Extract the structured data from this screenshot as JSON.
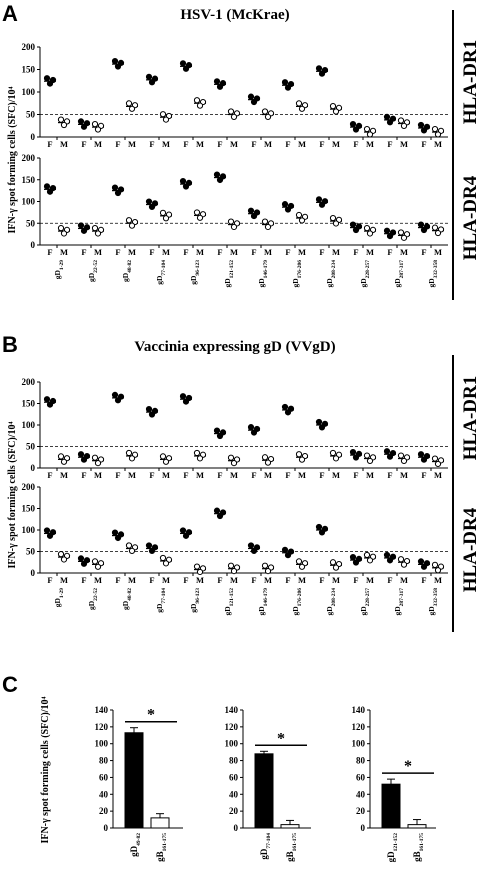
{
  "figure": {
    "panelA": {
      "letter": "A",
      "title": "HSV-1 (McKrae)",
      "side_top": "HLA-DR1",
      "side_bottom": "HLA-DR4",
      "ylabel": "IFN-γ spot forming cells (SFC)/10⁴"
    },
    "panelB": {
      "letter": "B",
      "title": "Vaccinia expressing gD (VVgD)",
      "side_top": "HLA-DR1",
      "side_bottom": "HLA-DR4",
      "ylabel": "IFN-γ spot forming  cells (SFC)/10⁴"
    },
    "panelC": {
      "letter": "C",
      "ylabel": "IFN-γ spot forming cells (SFC)/10⁴"
    }
  },
  "chart_data": [
    {
      "type": "scatter",
      "panel": "A-top",
      "categories": [
        "gD1-29",
        "gD22-52",
        "gD48-82",
        "gD77-104",
        "gD96-123",
        "gD121-152",
        "gD146-179",
        "gD176-206",
        "gD208-234",
        "gD228-257",
        "gD287-317",
        "gD332-358"
      ],
      "sub_labels": [
        "F",
        "M"
      ],
      "yticks": [
        0,
        50,
        100,
        150,
        200
      ],
      "ylim": [
        0,
        200
      ],
      "reference_line": 50,
      "series": [
        {
          "marker": "filled",
          "values": [
            124,
            28,
            162,
            127,
            157,
            117,
            83,
            115,
            146,
            22,
            38,
            20
          ]
        },
        {
          "marker": "open",
          "values": [
            32,
            22,
            68,
            44,
            75,
            50,
            50,
            68,
            62,
            11,
            30,
            11
          ]
        }
      ]
    },
    {
      "type": "scatter",
      "panel": "A-bottom",
      "categories": [
        "gD1-29",
        "gD22-52",
        "gD48-82",
        "gD77-104",
        "gD96-123",
        "gD121-152",
        "gD146-179",
        "gD176-206",
        "gD208-234",
        "gD228-257",
        "gD287-317",
        "gD332-358"
      ],
      "category_labels": [
        {
          "main": "gD",
          "sub": "1-29"
        },
        {
          "main": "gD",
          "sub": "22-52"
        },
        {
          "main": "gD",
          "sub": "48-82"
        },
        {
          "main": "gD",
          "sub": "77-104"
        },
        {
          "main": "gD",
          "sub": "96-123"
        },
        {
          "main": "gD",
          "sub": "121-152"
        },
        {
          "main": "gD",
          "sub": "146-179"
        },
        {
          "main": "gD",
          "sub": "176-206"
        },
        {
          "main": "gD",
          "sub": "208-234"
        },
        {
          "main": "gD",
          "sub": "228-257"
        },
        {
          "main": "gD",
          "sub": "287-317"
        },
        {
          "main": "gD",
          "sub": "332-358"
        }
      ],
      "sub_labels": [
        "F",
        "M"
      ],
      "yticks": [
        0,
        50,
        100,
        150,
        200
      ],
      "ylim": [
        0,
        200
      ],
      "reference_line": 50,
      "series": [
        {
          "marker": "filled",
          "values": [
            128,
            38,
            125,
            93,
            140,
            155,
            72,
            87,
            98,
            40,
            26,
            40
          ]
        },
        {
          "marker": "open",
          "values": [
            32,
            32,
            50,
            67,
            68,
            47,
            47,
            62,
            55,
            32,
            22,
            33
          ]
        }
      ]
    },
    {
      "type": "scatter",
      "panel": "B-top",
      "categories": [
        "gD1-29",
        "gD22-52",
        "gD48-82",
        "gD77-104",
        "gD96-123",
        "gD121-152",
        "gD146-179",
        "gD176-206",
        "gD208-234",
        "gD228-257",
        "gD287-317",
        "gD332-358"
      ],
      "sub_labels": [
        "F",
        "M"
      ],
      "yticks": [
        0,
        50,
        100,
        150,
        200
      ],
      "ylim": [
        0,
        200
      ],
      "reference_line": 50,
      "series": [
        {
          "marker": "filled",
          "values": [
            153,
            25,
            163,
            130,
            160,
            80,
            88,
            135,
            100,
            30,
            32,
            25
          ]
        },
        {
          "marker": "open",
          "values": [
            20,
            17,
            28,
            20,
            28,
            17,
            18,
            25,
            28,
            22,
            22,
            15
          ]
        }
      ]
    },
    {
      "type": "scatter",
      "panel": "B-bottom",
      "categories": [
        "gD1-29",
        "gD22-52",
        "gD48-82",
        "gD77-104",
        "gD96-123",
        "gD121-152",
        "gD146-179",
        "gD176-206",
        "gD208-234",
        "gD228-257",
        "gD287-317",
        "gD332-358"
      ],
      "category_labels": [
        {
          "main": "gD",
          "sub": "1-29"
        },
        {
          "main": "gD",
          "sub": "22-52"
        },
        {
          "main": "gD",
          "sub": "48-82"
        },
        {
          "main": "gD",
          "sub": "77-104"
        },
        {
          "main": "gD",
          "sub": "96-123"
        },
        {
          "main": "gD",
          "sub": "121-152"
        },
        {
          "main": "gD",
          "sub": "146-179"
        },
        {
          "main": "gD",
          "sub": "176-206"
        },
        {
          "main": "gD",
          "sub": "208-234"
        },
        {
          "main": "gD",
          "sub": "228-257"
        },
        {
          "main": "gD",
          "sub": "287-317"
        },
        {
          "main": "gD",
          "sub": "332-358"
        }
      ],
      "sub_labels": [
        "F",
        "M"
      ],
      "yticks": [
        0,
        50,
        100,
        150,
        200
      ],
      "ylim": [
        0,
        200
      ],
      "reference_line": 50,
      "series": [
        {
          "marker": "filled",
          "values": [
            92,
            27,
            87,
            57,
            92,
            138,
            57,
            47,
            100,
            30,
            35,
            20
          ]
        },
        {
          "marker": "open",
          "values": [
            37,
            20,
            57,
            28,
            8,
            10,
            10,
            20,
            18,
            35,
            25,
            12
          ]
        }
      ]
    },
    {
      "type": "bar",
      "panel": "C1",
      "categories": [
        {
          "main": "gD",
          "sub": "49-82"
        },
        {
          "main": "gB",
          "sub": "161-175"
        }
      ],
      "values": [
        113,
        12
      ],
      "errors": [
        6,
        5
      ],
      "fills": [
        "#000000",
        "#ffffff"
      ],
      "yticks": [
        0,
        20,
        40,
        60,
        80,
        100,
        120,
        140
      ],
      "ylim": [
        0,
        140
      ],
      "annotation": "*"
    },
    {
      "type": "bar",
      "panel": "C2",
      "categories": [
        {
          "main": "gD",
          "sub": "77-104"
        },
        {
          "main": "gB",
          "sub": "161-175"
        }
      ],
      "values": [
        88,
        4
      ],
      "errors": [
        3,
        5
      ],
      "fills": [
        "#000000",
        "#ffffff"
      ],
      "yticks": [
        0,
        20,
        40,
        60,
        80,
        100,
        120,
        140
      ],
      "ylim": [
        0,
        140
      ],
      "annotation": "*"
    },
    {
      "type": "bar",
      "panel": "C3",
      "categories": [
        {
          "main": "gD",
          "sub": "121-152"
        },
        {
          "main": "gB",
          "sub": "161-175"
        }
      ],
      "values": [
        52,
        4
      ],
      "errors": [
        6,
        6
      ],
      "fills": [
        "#000000",
        "#ffffff"
      ],
      "yticks": [
        0,
        20,
        40,
        60,
        80,
        100,
        120,
        140
      ],
      "ylim": [
        0,
        140
      ],
      "annotation": "*"
    }
  ]
}
